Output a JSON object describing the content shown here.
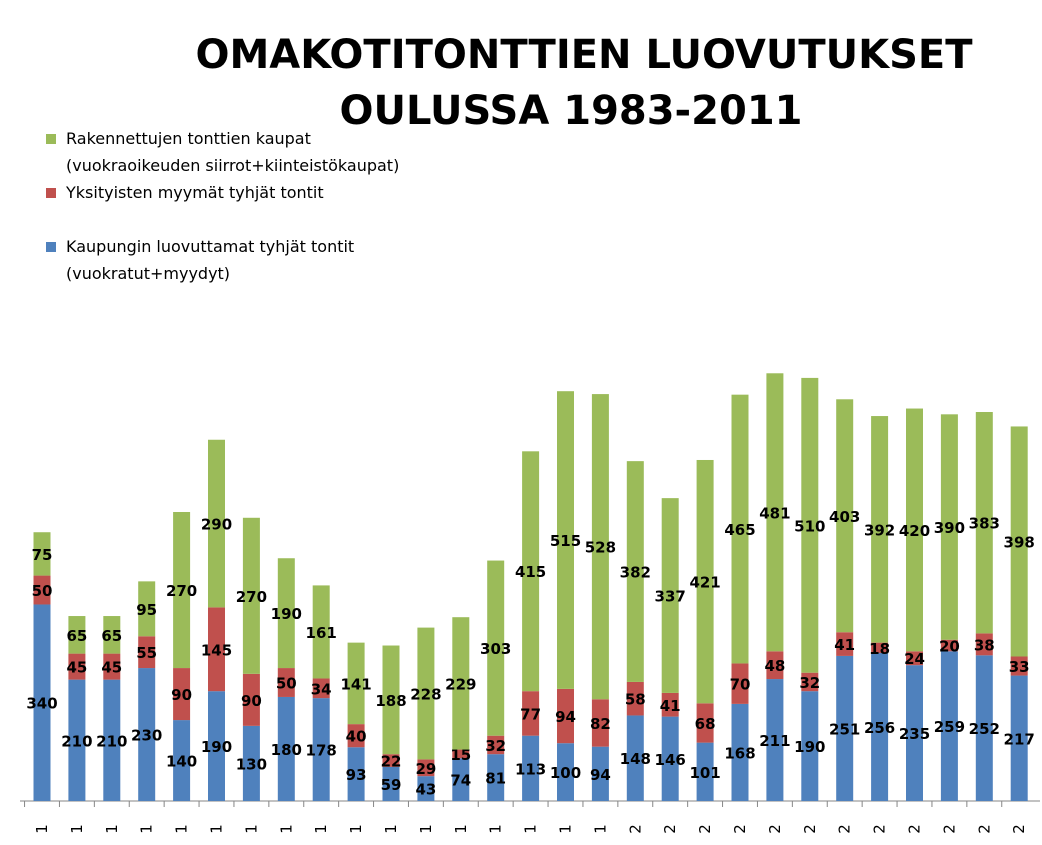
{
  "chart_data": {
    "type": "bar",
    "stacked": true,
    "title": [
      "OMAKOTITONTTIEN LUOVUTUKSET",
      "OULUSSA 1983-2011"
    ],
    "categories": [
      "1",
      "1",
      "1",
      "1",
      "1",
      "1",
      "1",
      "1",
      "1",
      "1",
      "1",
      "1",
      "1",
      "1",
      "1",
      "1",
      "1",
      "2",
      "2",
      "2",
      "2",
      "2",
      "2",
      "2",
      "2",
      "2",
      "2",
      "2",
      "2"
    ],
    "series": [
      {
        "name": "Kaupungin luovuttamat tyhjät tontit (vuokratut+myydyt)",
        "color": "#4F81BD",
        "values": [
          340,
          210,
          210,
          230,
          140,
          190,
          130,
          180,
          178,
          93,
          59,
          43,
          74,
          81,
          113,
          100,
          94,
          148,
          146,
          101,
          168,
          211,
          190,
          251,
          256,
          235,
          259,
          252,
          217
        ]
      },
      {
        "name": "Yksityisten myymät tyhjät tontit",
        "color": "#C0504D",
        "values": [
          50,
          45,
          45,
          55,
          90,
          145,
          90,
          50,
          34,
          40,
          22,
          29,
          15,
          32,
          77,
          94,
          82,
          58,
          41,
          68,
          70,
          48,
          32,
          41,
          18,
          24,
          20,
          38,
          33
        ]
      },
      {
        "name": "Rakennettujen tonttien kaupat (vuokraoikeuden siirrot+kiinteistökaupat)",
        "color": "#9BBB59",
        "values": [
          75,
          65,
          65,
          95,
          270,
          290,
          270,
          190,
          161,
          141,
          188,
          228,
          229,
          303,
          415,
          515,
          528,
          382,
          337,
          421,
          465,
          481,
          510,
          403,
          392,
          420,
          390,
          383,
          398
        ]
      }
    ],
    "legend": {
      "placement": "top-left",
      "entries": [
        {
          "lines": [
            "Rakennettujen tonttien kaupat",
            "(vuokraoikeuden siirrot+kiinteistökaupat)"
          ],
          "color": "#9BBB59"
        },
        {
          "lines": [
            "Yksityisten myymät tyhjät tontit"
          ],
          "color": "#C0504D"
        },
        {
          "lines": [
            "Kaupungin luovuttamat tyhjät tontit",
            "(vuokratut+myydyt)"
          ],
          "color": "#4F81BD"
        }
      ]
    },
    "grid": false,
    "data_labels": true
  }
}
